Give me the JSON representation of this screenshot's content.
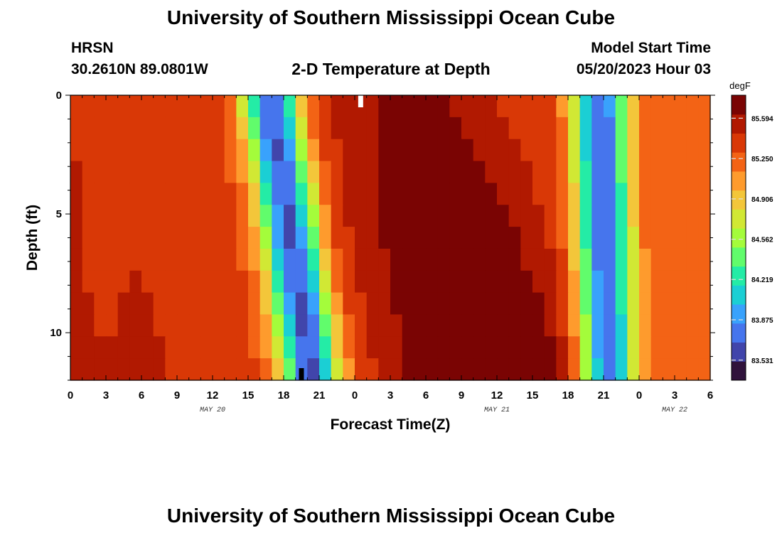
{
  "page": {
    "title": "University of Southern Mississippi Ocean Cube",
    "footer_title": "University of Southern Mississippi Ocean Cube"
  },
  "header": {
    "station": "HRSN",
    "coords": "30.2610N  89.0801W",
    "plot_title": "2-D Temperature at Depth",
    "model_label": "Model Start Time",
    "model_time": "05/20/2023 Hour 03"
  },
  "chart_data": {
    "type": "heatmap",
    "title": "2-D Temperature at Depth",
    "xlabel": "Forecast Time(Z)",
    "ylabel": "Depth (ft)",
    "x_start_hour": 0,
    "x_end_hour": 54,
    "x_ticks": [
      {
        "hour": 0,
        "label": "0"
      },
      {
        "hour": 3,
        "label": "3"
      },
      {
        "hour": 6,
        "label": "6"
      },
      {
        "hour": 9,
        "label": "9"
      },
      {
        "hour": 12,
        "label": "12"
      },
      {
        "hour": 15,
        "label": "15"
      },
      {
        "hour": 18,
        "label": "18"
      },
      {
        "hour": 21,
        "label": "21"
      },
      {
        "hour": 24,
        "label": "0"
      },
      {
        "hour": 27,
        "label": "3"
      },
      {
        "hour": 30,
        "label": "6"
      },
      {
        "hour": 33,
        "label": "9"
      },
      {
        "hour": 36,
        "label": "12"
      },
      {
        "hour": 39,
        "label": "15"
      },
      {
        "hour": 42,
        "label": "18"
      },
      {
        "hour": 45,
        "label": "21"
      },
      {
        "hour": 48,
        "label": "0"
      },
      {
        "hour": 51,
        "label": "3"
      },
      {
        "hour": 54,
        "label": "6"
      }
    ],
    "date_labels": [
      {
        "hour": 12,
        "label": "MAY 20"
      },
      {
        "hour": 36,
        "label": "MAY 21"
      },
      {
        "hour": 51,
        "label": "MAY 22"
      }
    ],
    "ylim": [
      0,
      12
    ],
    "y_ticks": [
      0,
      5,
      10
    ],
    "colorbar": {
      "units": "degF",
      "min": 83.36,
      "max": 85.79,
      "ticks": [
        85.594,
        85.25,
        84.906,
        84.562,
        84.219,
        83.875,
        83.531
      ]
    },
    "colors": [
      "#30123b",
      "#4145ab",
      "#4675ed",
      "#39a2fc",
      "#1bcfd4",
      "#24eca6",
      "#61fc6c",
      "#a4fc3b",
      "#d1e834",
      "#f3c63a",
      "#fe9b2d",
      "#f36315",
      "#d93806",
      "#b11901",
      "#7a0403"
    ],
    "depths_ft": [
      0,
      1,
      2,
      3,
      4,
      5,
      6,
      7,
      8,
      9,
      10,
      11,
      12
    ],
    "model_description": "Temperature (degF) field T(hour, depth). Low band centered near 20Z May 20 tilting later with depth (from ~17Z at surface to ~20Z at 12 ft); warm core 85.6-85.8 degF near 01-10Z May 21, deepest at 7-12 ft; secondary cold band near 20-21Z May 21; warming toward 06Z May 22; shallow warm 84.9-85.3 degF in first 12 h.",
    "markers": [
      {
        "hour": 24.5,
        "depth_ft": 0,
        "color": "#ffffff",
        "label": "surface marker"
      },
      {
        "hour": 19.5,
        "depth_ft": 12,
        "color": "#000000",
        "label": "bottom marker"
      }
    ]
  }
}
